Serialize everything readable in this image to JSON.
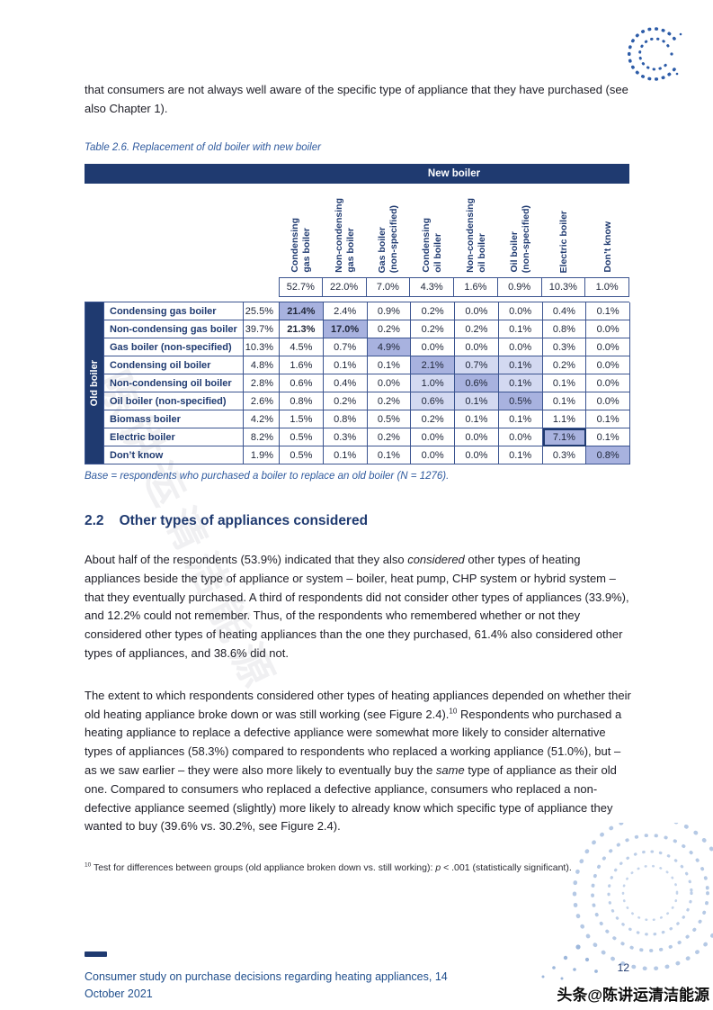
{
  "page": {
    "top_paragraph": "that consumers are not always well aware of the specific type of appliance that they have purchased (see also Chapter 1).",
    "watermark_center": "陈讲运清洁能源",
    "watermark_bottom": "头条@陈讲运清洁能源",
    "page_number": "12",
    "footer_line1": "Consumer study on purchase decisions regarding heating appliances, 14",
    "footer_line2": "October 2021"
  },
  "table": {
    "caption": "Table 2.6. Replacement of old boiler with new boiler",
    "new_boiler_label": "New boiler",
    "old_boiler_label": "Old boiler",
    "columns": [
      {
        "lines": [
          "Condensing",
          "gas boiler"
        ]
      },
      {
        "lines": [
          "Non-condensing",
          "gas boiler"
        ]
      },
      {
        "lines": [
          "Gas boiler",
          "(non-specified)"
        ]
      },
      {
        "lines": [
          "Condensing",
          "oil boiler"
        ]
      },
      {
        "lines": [
          "Non-condensing",
          "oil boiler"
        ]
      },
      {
        "lines": [
          "Oil boiler",
          "(non-specified)"
        ]
      },
      {
        "lines": [
          "Electric boiler"
        ]
      },
      {
        "lines": [
          "Don’t know"
        ]
      }
    ],
    "column_totals": [
      "52.7%",
      "22.0%",
      "7.0%",
      "4.3%",
      "1.6%",
      "0.9%",
      "10.3%",
      "1.0%"
    ],
    "rows": [
      {
        "label": "Condensing gas boiler",
        "total": "25.5%",
        "values": [
          "21.4%",
          "2.4%",
          "0.9%",
          "0.2%",
          "0.0%",
          "0.0%",
          "0.4%",
          "0.1%"
        ],
        "marks": {
          "0": "strong bold"
        }
      },
      {
        "label": "Non-condensing gas boiler",
        "total": "39.7%",
        "values": [
          "21.3%",
          "17.0%",
          "0.2%",
          "0.2%",
          "0.2%",
          "0.1%",
          "0.8%",
          "0.0%"
        ],
        "marks": {
          "0": "bold",
          "1": "strong bold"
        }
      },
      {
        "label": "Gas boiler (non-specified)",
        "total": "10.3%",
        "values": [
          "4.5%",
          "0.7%",
          "4.9%",
          "0.0%",
          "0.0%",
          "0.0%",
          "0.3%",
          "0.0%"
        ],
        "marks": {
          "2": "strong"
        }
      },
      {
        "label": "Condensing oil boiler",
        "total": "4.8%",
        "values": [
          "1.6%",
          "0.1%",
          "0.1%",
          "2.1%",
          "0.7%",
          "0.1%",
          "0.2%",
          "0.0%"
        ],
        "marks": {
          "3": "strong",
          "4": "light",
          "5": "light"
        }
      },
      {
        "label": "Non-condensing oil boiler",
        "total": "2.8%",
        "values": [
          "0.6%",
          "0.4%",
          "0.0%",
          "1.0%",
          "0.6%",
          "0.1%",
          "0.1%",
          "0.0%"
        ],
        "marks": {
          "3": "light",
          "4": "strong",
          "5": "light"
        }
      },
      {
        "label": "Oil boiler (non-specified)",
        "total": "2.6%",
        "values": [
          "0.8%",
          "0.2%",
          "0.2%",
          "0.6%",
          "0.1%",
          "0.5%",
          "0.1%",
          "0.0%"
        ],
        "marks": {
          "3": "light",
          "4": "light",
          "5": "strong"
        }
      },
      {
        "label": "Biomass boiler",
        "total": "4.2%",
        "values": [
          "1.5%",
          "0.8%",
          "0.5%",
          "0.2%",
          "0.1%",
          "0.1%",
          "1.1%",
          "0.1%"
        ]
      },
      {
        "label": "Electric boiler",
        "total": "8.2%",
        "values": [
          "0.5%",
          "0.3%",
          "0.2%",
          "0.0%",
          "0.0%",
          "0.0%",
          "7.1%",
          "0.1%"
        ],
        "marks": {
          "6": "boxed"
        }
      },
      {
        "label": "Don’t know",
        "total": "1.9%",
        "values": [
          "0.5%",
          "0.1%",
          "0.1%",
          "0.0%",
          "0.0%",
          "0.1%",
          "0.3%",
          "0.8%"
        ],
        "marks": {
          "7": "strong"
        }
      }
    ],
    "base_note": "Base = respondents who purchased a boiler to replace an old boiler (N = 1276)."
  },
  "section": {
    "number": "2.2",
    "title": "Other types of appliances considered",
    "para1": {
      "s1": "About half of the respondents (53.9%) indicated that they also ",
      "italic1": "considered",
      "s2": " other types of heating appliances beside the type of appliance or system – boiler, heat pump, CHP system or hybrid system – that they eventually purchased. A third of respondents did not consider other types of appliances (33.9%), and 12.2% could not remember. Thus, of the respondents who remembered whether or not they considered other types of heating appliances than the one they purchased, 61.4% also considered other types of appliances, and 38.6% did not."
    },
    "para2": {
      "s1": "The extent to which respondents considered other types of heating appliances depended on whether their old heating appliance broke down or was still working (see Figure 2.4).",
      "sup": "10",
      "s2": " Respondents who purchased a heating appliance to replace a defective appliance were somewhat more likely to consider alternative types of appliances (58.3%) compared to respondents who replaced a working appliance (51.0%), but – as we saw earlier – they were also more likely to eventually buy the ",
      "italic": "same",
      "s3": " type of appliance as their old one. Compared to consumers who replaced a defective appliance, consumers who replaced a non-defective appliance seemed (slightly) more likely to already know which specific type of appliance they wanted to buy (39.6% vs. 30.2%, see Figure 2.4)."
    }
  },
  "footnote": {
    "sup": "10",
    "s1": " Test for differences between groups (old appliance broken down vs. still working): ",
    "italic": "p",
    "s2": " < .001 (statistically significant)."
  }
}
